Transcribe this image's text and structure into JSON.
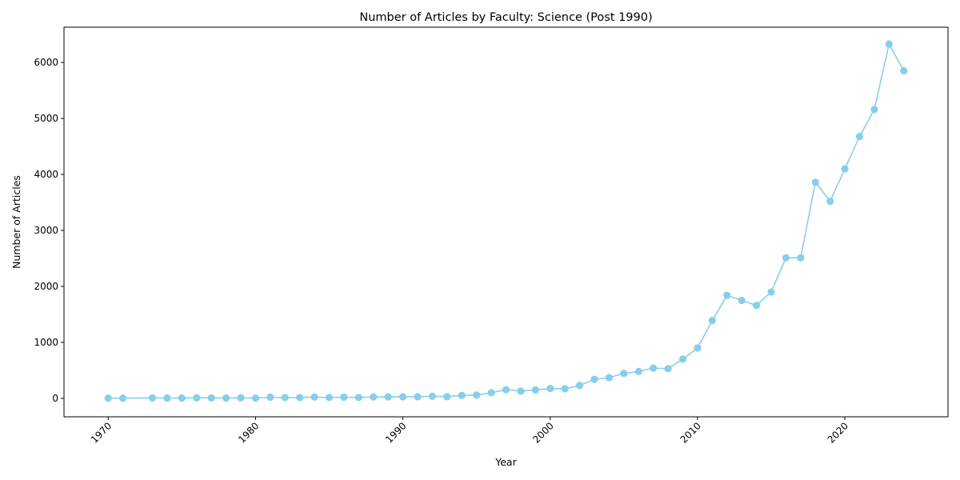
{
  "chart_data": {
    "type": "line",
    "title": "Number of Articles by Faculty: Science (Post 1990)",
    "xlabel": "Year",
    "ylabel": "Number of Articles",
    "xlim": [
      1967,
      2027
    ],
    "ylim": [
      -330,
      6630
    ],
    "x_ticks": [
      1970,
      1980,
      1990,
      2000,
      2010,
      2020
    ],
    "y_ticks": [
      0,
      1000,
      2000,
      3000,
      4000,
      5000,
      6000
    ],
    "grid": false,
    "color": "#87CEEB",
    "series": [
      {
        "x": [
          1970,
          1971,
          1973,
          1974,
          1975,
          1976,
          1977,
          1978,
          1979,
          1980,
          1981,
          1982,
          1983,
          1984,
          1985,
          1986,
          1987,
          1988,
          1989,
          1990,
          1991,
          1992,
          1993,
          1994,
          1995,
          1996,
          1997,
          1998,
          1999,
          2000,
          2001,
          2002,
          2003,
          2004,
          2005,
          2006,
          2007,
          2008,
          2009,
          2010,
          2011,
          2012,
          2013,
          2014,
          2015,
          2016,
          2017,
          2018,
          2019,
          2020,
          2021,
          2022,
          2023,
          2024
        ],
        "y": [
          2,
          3,
          8,
          4,
          5,
          10,
          8,
          5,
          9,
          4,
          20,
          14,
          15,
          22,
          14,
          20,
          14,
          25,
          26,
          27,
          28,
          38,
          30,
          52,
          58,
          100,
          155,
          130,
          150,
          175,
          170,
          230,
          340,
          370,
          445,
          480,
          540,
          530,
          700,
          900,
          1390,
          1840,
          1750,
          1660,
          1900,
          2510,
          2510,
          3860,
          3520,
          4100,
          4680,
          5160,
          6330,
          5850
        ]
      }
    ]
  }
}
